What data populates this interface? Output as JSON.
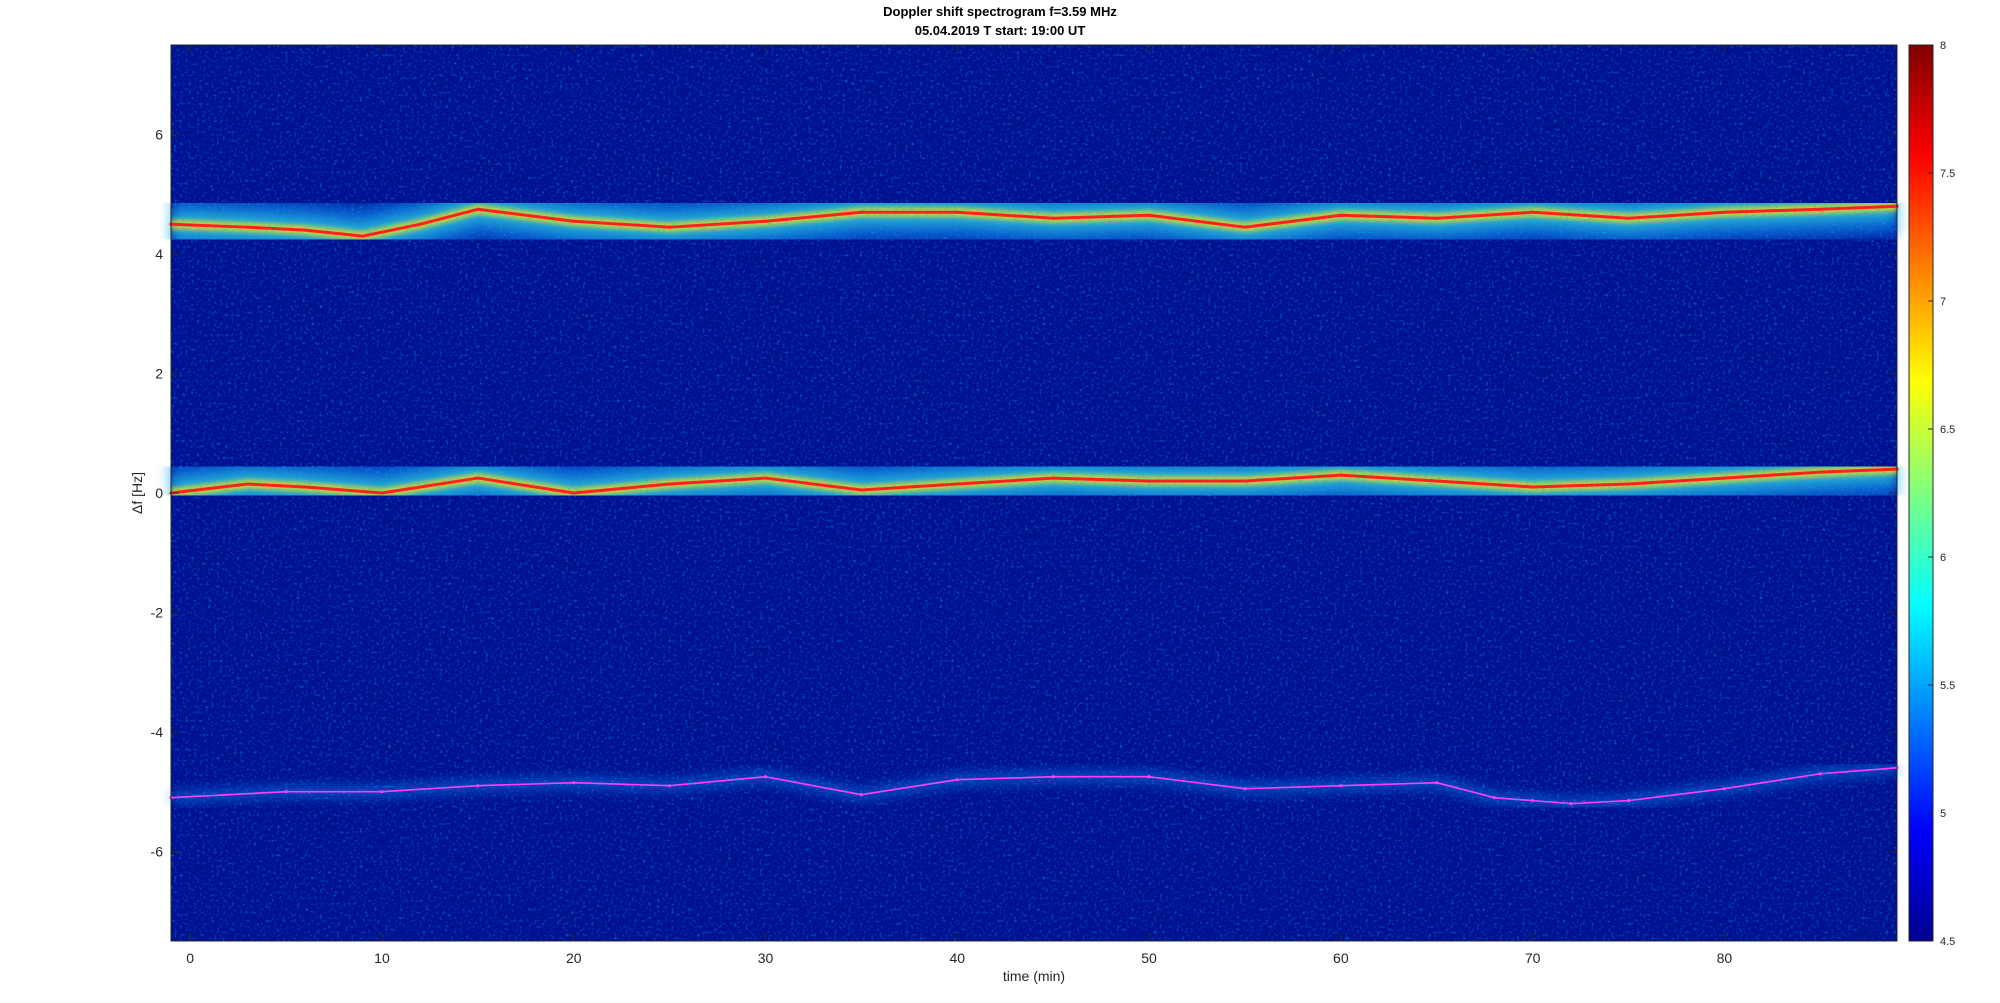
{
  "chart_data": {
    "type": "heatmap",
    "title": "Doppler shift spectrogram f=3.59 MHz",
    "subtitle": "05.04.2019   T start: 19:00 UT",
    "xlabel": "time (min)",
    "ylabel": "Δf [Hz]",
    "xlim": [
      -1,
      89
    ],
    "ylim": [
      -7.5,
      7.5
    ],
    "x_ticks": [
      0,
      10,
      20,
      30,
      40,
      50,
      60,
      70,
      80
    ],
    "y_ticks": [
      -6,
      -4,
      -2,
      0,
      2,
      4,
      6
    ],
    "colorbar": {
      "colormap": "jet",
      "range": [
        4.5,
        8
      ],
      "ticks": [
        4.5,
        5,
        5.5,
        6,
        6.5,
        7,
        7.5,
        8
      ]
    },
    "grid": false,
    "legend": "none",
    "series": [
      {
        "color": "#ff2020",
        "x": [
          -1,
          3,
          6,
          9,
          12,
          15,
          20,
          25,
          30,
          35,
          40,
          45,
          50,
          55,
          60,
          65,
          70,
          75,
          80,
          85,
          89
        ],
        "y": [
          4.5,
          4.45,
          4.4,
          4.3,
          4.5,
          4.75,
          4.55,
          4.45,
          4.55,
          4.7,
          4.7,
          4.6,
          4.65,
          4.45,
          4.65,
          4.6,
          4.7,
          4.6,
          4.7,
          4.75,
          4.8
        ]
      },
      {
        "color": "#ff2020",
        "x": [
          -1,
          3,
          6,
          10,
          15,
          20,
          25,
          30,
          35,
          40,
          45,
          50,
          55,
          60,
          65,
          70,
          75,
          80,
          85,
          89
        ],
        "y": [
          0.0,
          0.15,
          0.1,
          0.0,
          0.25,
          0.0,
          0.15,
          0.25,
          0.05,
          0.15,
          0.25,
          0.2,
          0.2,
          0.3,
          0.2,
          0.1,
          0.15,
          0.25,
          0.35,
          0.4
        ]
      },
      {
        "color": "#ff40ff",
        "x": [
          -1,
          5,
          10,
          15,
          20,
          25,
          30,
          35,
          40,
          45,
          50,
          55,
          60,
          65,
          68,
          70,
          72,
          75,
          80,
          85,
          89
        ],
        "y": [
          -5.1,
          -5.0,
          -5.0,
          -4.9,
          -4.85,
          -4.9,
          -4.75,
          -5.05,
          -4.8,
          -4.75,
          -4.75,
          -4.95,
          -4.9,
          -4.85,
          -5.1,
          -5.15,
          -5.2,
          -5.15,
          -4.95,
          -4.7,
          -4.6
        ]
      }
    ]
  }
}
